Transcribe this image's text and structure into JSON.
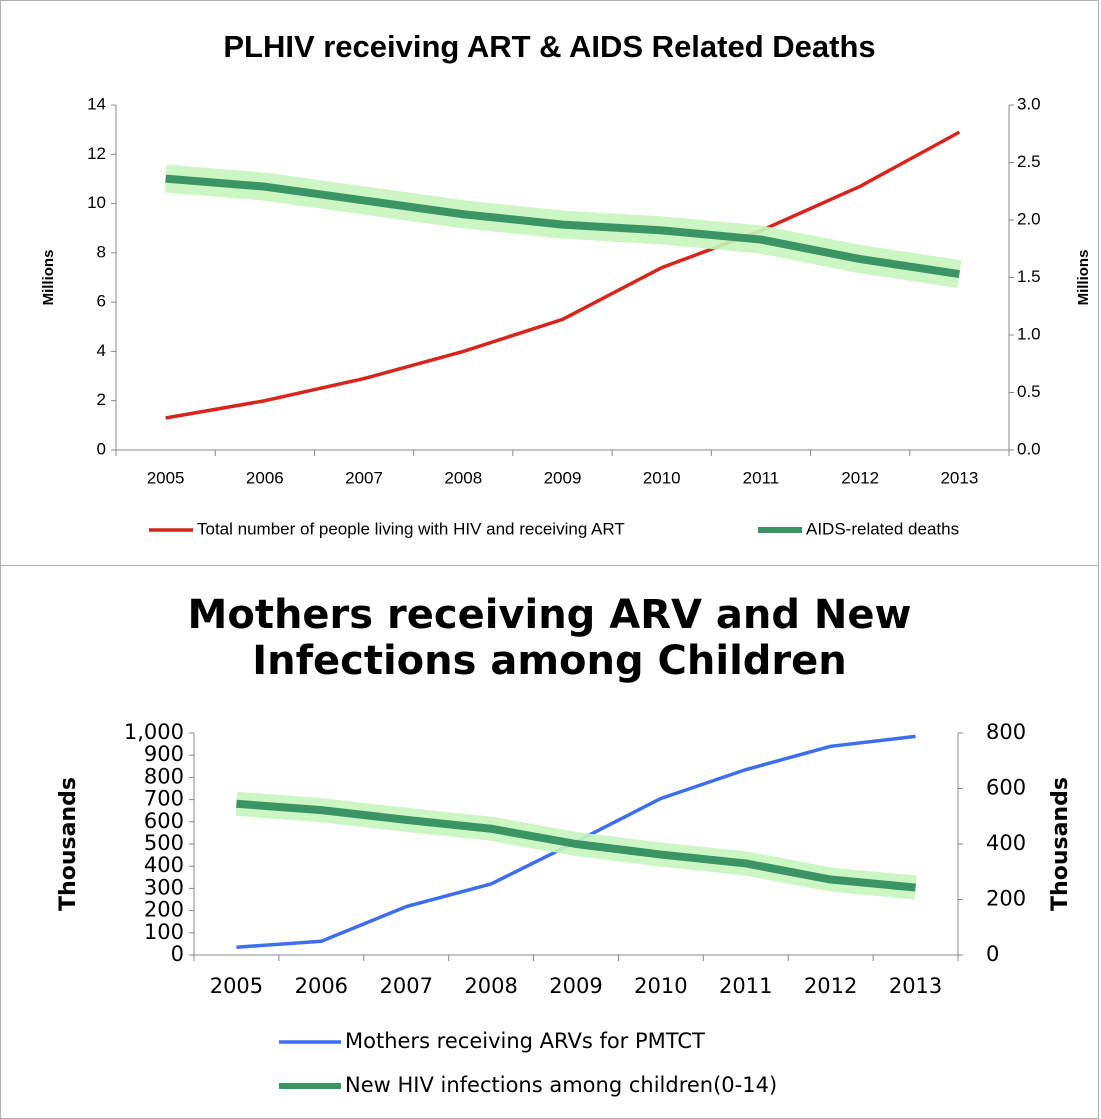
{
  "chart_data": [
    {
      "type": "line",
      "title": "PLHIV receiving ART & AIDS Related Deaths",
      "ylabel": "Millions",
      "y2label": "Millions",
      "categories": [
        "2005",
        "2006",
        "2007",
        "2008",
        "2009",
        "2010",
        "2011",
        "2012",
        "2013"
      ],
      "series": [
        {
          "name": "Total number of people living with HIV and receiving ART",
          "color": "#d9241c",
          "values": [
            1.3,
            2.0,
            2.9,
            4.0,
            5.3,
            7.4,
            8.9,
            10.7,
            12.9
          ]
        },
        {
          "name": "AIDS-related deaths",
          "color": "#3a9463",
          "axis": "y2",
          "values": [
            2.36,
            2.29,
            2.17,
            2.05,
            1.96,
            1.91,
            1.83,
            1.66,
            1.53
          ]
        }
      ],
      "ylim": [
        0,
        14
      ],
      "yticks": [
        0,
        2,
        4,
        6,
        8,
        10,
        12,
        14
      ],
      "y2lim": [
        0,
        3
      ],
      "y2ticks": [
        {
          "value": 0,
          "label": "0.0"
        },
        0.5,
        {
          "value": 1,
          "label": "1.0"
        },
        1.5,
        {
          "value": 2,
          "label": "2.0"
        },
        2.5,
        {
          "value": 3,
          "label": "3.0"
        }
      ],
      "grid": false,
      "legend": "bottom"
    },
    {
      "type": "line",
      "title": "Mothers receiving ARV and New Infections among Children",
      "ylabel": "Thousands",
      "y2label": "Thousands",
      "categories": [
        "2005",
        "2006",
        "2007",
        "2008",
        "2009",
        "2010",
        "2011",
        "2012",
        "2013"
      ],
      "series": [
        {
          "name": "Mothers receiving ARVs for PMTCT",
          "color": "#3d6ef0",
          "values": [
            35,
            62,
            218,
            320,
            510,
            705,
            835,
            940,
            985
          ]
        },
        {
          "name": "New HIV infections among children(0-14)",
          "color": "#3a9463",
          "axis": "y2",
          "values": [
            545,
            522,
            487,
            455,
            400,
            362,
            330,
            272,
            243
          ]
        }
      ],
      "ylim": [
        0,
        1000
      ],
      "yticks": [
        0,
        100,
        200,
        300,
        400,
        500,
        600,
        700,
        800,
        900,
        {
          "value": 1000,
          "label": "1,000"
        }
      ],
      "y2lim": [
        0,
        800
      ],
      "y2ticks": [
        0,
        200,
        400,
        600,
        800
      ],
      "grid": false,
      "legend": "bottom"
    }
  ]
}
